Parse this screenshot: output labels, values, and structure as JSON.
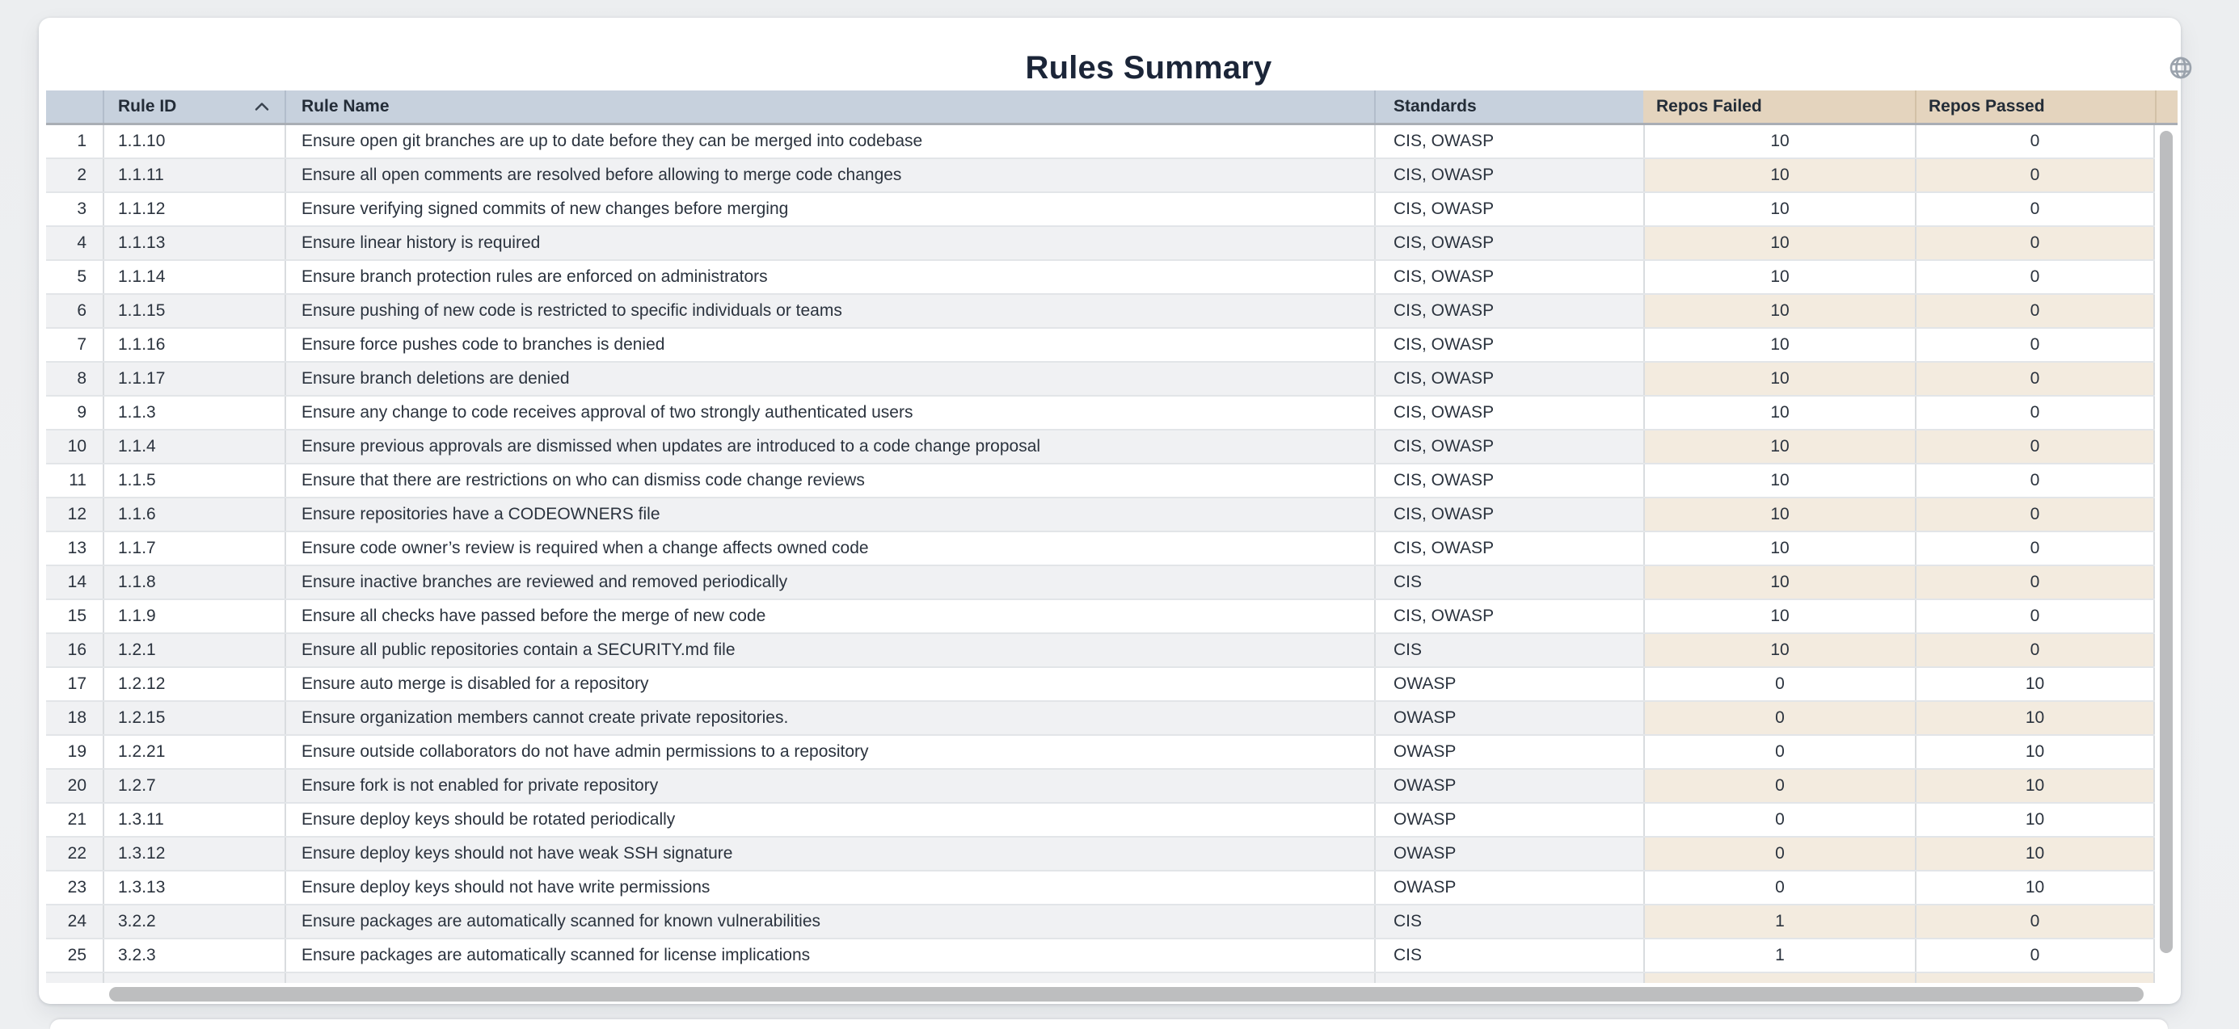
{
  "page": {
    "title": "Rules Summary",
    "top_right_icon": "globe"
  },
  "colors": {
    "header_primary": "#c7d1dd",
    "header_accent": "#e4d4be",
    "stripe_primary": "#f0f1f3",
    "stripe_accent": "#f3ebdf",
    "title_text": "#1b2538",
    "body_text": "#2b333e",
    "scrollbar_thumb": "#bcbdbf"
  },
  "table": {
    "columns": [
      {
        "key": "index",
        "label": "",
        "sorted": null
      },
      {
        "key": "rule_id",
        "label": "Rule ID",
        "sorted": "asc"
      },
      {
        "key": "rule_name",
        "label": "Rule Name",
        "sorted": null
      },
      {
        "key": "standards",
        "label": "Standards",
        "sorted": null
      },
      {
        "key": "repos_failed",
        "label": "Repos Failed",
        "sorted": null
      },
      {
        "key": "repos_passed",
        "label": "Repos Passed",
        "sorted": null
      }
    ],
    "rows": [
      {
        "index": 1,
        "rule_id": "1.1.10",
        "rule_name": "Ensure open git branches are up to date before they can be merged into codebase",
        "standards": "CIS, OWASP",
        "repos_failed": 10,
        "repos_passed": 0
      },
      {
        "index": 2,
        "rule_id": "1.1.11",
        "rule_name": "Ensure all open comments are resolved before allowing to merge code changes",
        "standards": "CIS, OWASP",
        "repos_failed": 10,
        "repos_passed": 0
      },
      {
        "index": 3,
        "rule_id": "1.1.12",
        "rule_name": "Ensure verifying signed commits of new changes before merging",
        "standards": "CIS, OWASP",
        "repos_failed": 10,
        "repos_passed": 0
      },
      {
        "index": 4,
        "rule_id": "1.1.13",
        "rule_name": "Ensure linear history is required",
        "standards": "CIS, OWASP",
        "repos_failed": 10,
        "repos_passed": 0
      },
      {
        "index": 5,
        "rule_id": "1.1.14",
        "rule_name": "Ensure branch protection rules are enforced on administrators",
        "standards": "CIS, OWASP",
        "repos_failed": 10,
        "repos_passed": 0
      },
      {
        "index": 6,
        "rule_id": "1.1.15",
        "rule_name": "Ensure pushing of new code is restricted to specific individuals or teams",
        "standards": "CIS, OWASP",
        "repos_failed": 10,
        "repos_passed": 0
      },
      {
        "index": 7,
        "rule_id": "1.1.16",
        "rule_name": "Ensure force pushes code to branches is denied",
        "standards": "CIS, OWASP",
        "repos_failed": 10,
        "repos_passed": 0
      },
      {
        "index": 8,
        "rule_id": "1.1.17",
        "rule_name": "Ensure branch deletions are denied",
        "standards": "CIS, OWASP",
        "repos_failed": 10,
        "repos_passed": 0
      },
      {
        "index": 9,
        "rule_id": "1.1.3",
        "rule_name": "Ensure any change to code receives approval of two strongly authenticated users",
        "standards": "CIS, OWASP",
        "repos_failed": 10,
        "repos_passed": 0
      },
      {
        "index": 10,
        "rule_id": "1.1.4",
        "rule_name": "Ensure previous approvals are dismissed when updates are introduced to a code change proposal",
        "standards": "CIS, OWASP",
        "repos_failed": 10,
        "repos_passed": 0
      },
      {
        "index": 11,
        "rule_id": "1.1.5",
        "rule_name": "Ensure that there are restrictions on who can dismiss code change reviews",
        "standards": "CIS, OWASP",
        "repos_failed": 10,
        "repos_passed": 0
      },
      {
        "index": 12,
        "rule_id": "1.1.6",
        "rule_name": "Ensure repositories have a CODEOWNERS file",
        "standards": "CIS, OWASP",
        "repos_failed": 10,
        "repos_passed": 0
      },
      {
        "index": 13,
        "rule_id": "1.1.7",
        "rule_name": "Ensure code owner’s review is required when a change affects owned code",
        "standards": "CIS, OWASP",
        "repos_failed": 10,
        "repos_passed": 0
      },
      {
        "index": 14,
        "rule_id": "1.1.8",
        "rule_name": "Ensure inactive branches are reviewed and removed periodically",
        "standards": "CIS",
        "repos_failed": 10,
        "repos_passed": 0
      },
      {
        "index": 15,
        "rule_id": "1.1.9",
        "rule_name": "Ensure all checks have passed before the merge of new code",
        "standards": "CIS, OWASP",
        "repos_failed": 10,
        "repos_passed": 0
      },
      {
        "index": 16,
        "rule_id": "1.2.1",
        "rule_name": "Ensure all public repositories contain a SECURITY.md file",
        "standards": "CIS",
        "repos_failed": 10,
        "repos_passed": 0
      },
      {
        "index": 17,
        "rule_id": "1.2.12",
        "rule_name": "Ensure auto merge is disabled for a repository",
        "standards": "OWASP",
        "repos_failed": 0,
        "repos_passed": 10
      },
      {
        "index": 18,
        "rule_id": "1.2.15",
        "rule_name": "Ensure organization members cannot create private repositories.",
        "standards": "OWASP",
        "repos_failed": 0,
        "repos_passed": 10
      },
      {
        "index": 19,
        "rule_id": "1.2.21",
        "rule_name": "Ensure outside collaborators do not have admin permissions to a repository",
        "standards": "OWASP",
        "repos_failed": 0,
        "repos_passed": 10
      },
      {
        "index": 20,
        "rule_id": "1.2.7",
        "rule_name": "Ensure fork is not enabled for private repository",
        "standards": "OWASP",
        "repos_failed": 0,
        "repos_passed": 10
      },
      {
        "index": 21,
        "rule_id": "1.3.11",
        "rule_name": "Ensure deploy keys should be rotated periodically",
        "standards": "OWASP",
        "repos_failed": 0,
        "repos_passed": 10
      },
      {
        "index": 22,
        "rule_id": "1.3.12",
        "rule_name": "Ensure deploy keys should not have weak SSH signature",
        "standards": "OWASP",
        "repos_failed": 0,
        "repos_passed": 10
      },
      {
        "index": 23,
        "rule_id": "1.3.13",
        "rule_name": "Ensure deploy keys should not have write permissions",
        "standards": "OWASP",
        "repos_failed": 0,
        "repos_passed": 10
      },
      {
        "index": 24,
        "rule_id": "3.2.2",
        "rule_name": "Ensure packages are automatically scanned for known vulnerabilities",
        "standards": "CIS",
        "repos_failed": 1,
        "repos_passed": 0
      },
      {
        "index": 25,
        "rule_id": "3.2.3",
        "rule_name": "Ensure packages are automatically scanned for license implications",
        "standards": "CIS",
        "repos_failed": 1,
        "repos_passed": 0
      }
    ]
  }
}
